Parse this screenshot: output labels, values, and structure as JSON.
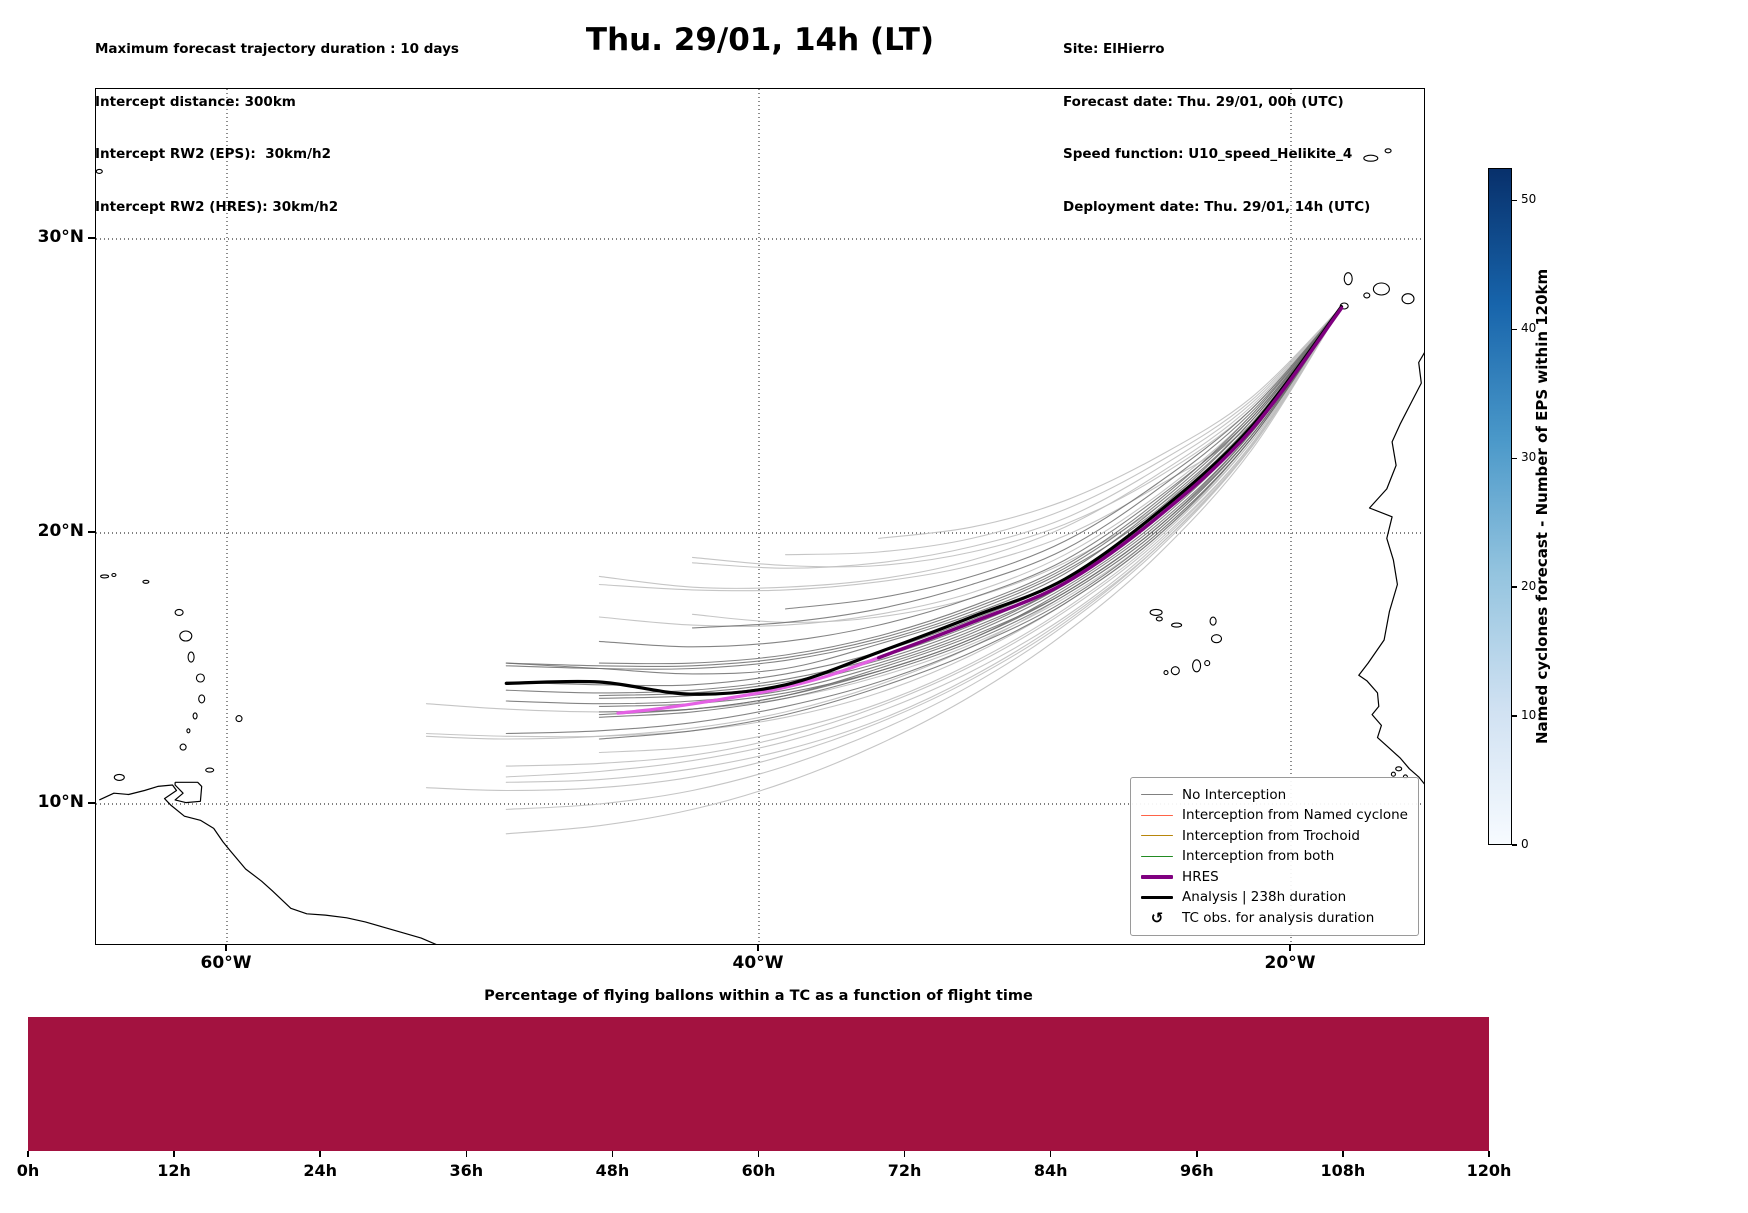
{
  "header": {
    "left_lines": [
      "Maximum forecast trajectory duration : 10 days",
      "Intercept distance: 300km",
      "Intercept RW2 (EPS):  30km/h2",
      "Intercept RW2 (HRES): 30km/h2"
    ],
    "title": "Thu. 29/01, 14h (LT)",
    "right_lines": [
      "Site: ElHierro",
      "Forecast date: Thu. 29/01, 00h (UTC)",
      "Speed function: U10_speed_Helikite_4",
      "Deployment date: Thu. 29/01, 14h (UTC)"
    ]
  },
  "map": {
    "x_ticks": [
      {
        "label": "60°W",
        "lon": -60
      },
      {
        "label": "40°W",
        "lon": -40
      },
      {
        "label": "20°W",
        "lon": -20
      }
    ],
    "y_ticks": [
      {
        "label": "30°N",
        "lat": 30
      },
      {
        "label": "20°N",
        "lat": 20
      },
      {
        "label": "10°N",
        "lat": 10
      }
    ],
    "legend": [
      {
        "label": "No Interception",
        "color": "#808080",
        "lw": 1.3
      },
      {
        "label": "Interception from Named cyclone",
        "color": "#ff6347",
        "lw": 1.3
      },
      {
        "label": "Interception from Trochoid",
        "color": "#b8860b",
        "lw": 1.3
      },
      {
        "label": "Interception from both",
        "color": "#228b22",
        "lw": 1.3
      },
      {
        "label": "HRES",
        "color": "#800080",
        "lw": 3.5
      },
      {
        "label": "Analysis | 238h duration",
        "color": "#000000",
        "lw": 3
      },
      {
        "label": "TC obs. for analysis duration",
        "marker": "↺",
        "color": "#000000"
      }
    ],
    "coastlines": {
      "africa": [
        [
          -14.75,
          26.5
        ],
        [
          -15.2,
          25.8
        ],
        [
          -15.1,
          25.1
        ],
        [
          -15.5,
          24.4
        ],
        [
          -15.9,
          23.7
        ],
        [
          -16.2,
          23.1
        ],
        [
          -16.05,
          22.3
        ],
        [
          -16.4,
          21.5
        ],
        [
          -17.05,
          20.85
        ],
        [
          -16.2,
          20.55
        ],
        [
          -16.4,
          19.8
        ],
        [
          -16.15,
          19.0
        ],
        [
          -16.0,
          18.1
        ],
        [
          -16.3,
          17.1
        ],
        [
          -16.5,
          16.05
        ],
        [
          -17.1,
          15.2
        ],
        [
          -17.45,
          14.75
        ],
        [
          -17.15,
          14.55
        ],
        [
          -16.75,
          14.1
        ],
        [
          -16.7,
          13.6
        ],
        [
          -16.95,
          13.3
        ],
        [
          -16.6,
          12.9
        ],
        [
          -16.75,
          12.45
        ],
        [
          -16.35,
          12.1
        ],
        [
          -15.9,
          11.7
        ],
        [
          -15.55,
          11.3
        ],
        [
          -15.2,
          11.0
        ],
        [
          -14.95,
          10.7
        ],
        [
          -14.75,
          10.45
        ]
      ],
      "south_america": [
        [
          -64.8,
          10.15
        ],
        [
          -64.25,
          10.4
        ],
        [
          -63.7,
          10.35
        ],
        [
          -63.1,
          10.5
        ],
        [
          -62.6,
          10.65
        ],
        [
          -62.05,
          10.7
        ],
        [
          -61.9,
          10.5
        ],
        [
          -62.35,
          10.2
        ],
        [
          -62.1,
          9.95
        ],
        [
          -61.6,
          9.55
        ],
        [
          -61.0,
          9.4
        ],
        [
          -60.5,
          9.1
        ],
        [
          -60.15,
          8.6
        ],
        [
          -59.9,
          8.3
        ],
        [
          -59.3,
          7.6
        ],
        [
          -58.7,
          7.15
        ],
        [
          -58.3,
          6.8
        ],
        [
          -57.6,
          6.15
        ],
        [
          -57.0,
          5.95
        ],
        [
          -56.3,
          5.9
        ],
        [
          -55.5,
          5.8
        ],
        [
          -54.8,
          5.65
        ],
        [
          -54.1,
          5.45
        ],
        [
          -53.4,
          5.25
        ],
        [
          -52.7,
          5.05
        ],
        [
          -52.1,
          4.8
        ],
        [
          -51.9,
          4.7
        ]
      ],
      "trinidad": [
        [
          -61.95,
          10.8
        ],
        [
          -61.1,
          10.8
        ],
        [
          -60.95,
          10.65
        ],
        [
          -61.0,
          10.1
        ],
        [
          -61.55,
          10.05
        ],
        [
          -61.95,
          10.15
        ],
        [
          -61.65,
          10.4
        ],
        [
          -61.95,
          10.7
        ],
        [
          -61.95,
          10.8
        ]
      ]
    },
    "islands": [
      [
        -17.0,
        32.75,
        7,
        3
      ],
      [
        -16.35,
        33.0,
        3,
        2
      ],
      [
        -17.85,
        28.65,
        4,
        6
      ],
      [
        -16.6,
        28.3,
        8,
        6
      ],
      [
        -17.15,
        28.08,
        3,
        2.5
      ],
      [
        -18.0,
        27.72,
        4,
        3
      ],
      [
        -15.6,
        27.97,
        6,
        5
      ],
      [
        -25.07,
        17.07,
        6,
        3
      ],
      [
        -24.95,
        16.83,
        3,
        2
      ],
      [
        -24.3,
        16.6,
        5,
        2
      ],
      [
        -22.93,
        16.75,
        3,
        4
      ],
      [
        -22.8,
        16.1,
        5,
        4
      ],
      [
        -23.15,
        15.2,
        2.5,
        2.5
      ],
      [
        -23.55,
        15.1,
        4,
        6
      ],
      [
        -24.35,
        14.92,
        4,
        4
      ],
      [
        -24.7,
        14.85,
        2,
        2
      ],
      [
        -63.05,
        18.2,
        3,
        1.5
      ],
      [
        -61.8,
        17.07,
        4,
        3
      ],
      [
        -61.55,
        16.2,
        6,
        5
      ],
      [
        -61.35,
        15.42,
        3,
        5
      ],
      [
        -61.0,
        14.65,
        4,
        4
      ],
      [
        -60.95,
        13.88,
        3,
        4
      ],
      [
        -61.2,
        13.25,
        2,
        3
      ],
      [
        -61.45,
        12.7,
        1.5,
        2
      ],
      [
        -61.65,
        12.1,
        3,
        3
      ],
      [
        -59.55,
        13.15,
        3,
        3
      ],
      [
        -60.65,
        11.25,
        4,
        2
      ],
      [
        -64.05,
        10.98,
        5,
        3
      ],
      [
        -64.6,
        18.4,
        4,
        1.5
      ],
      [
        -64.25,
        18.45,
        2,
        1.5
      ],
      [
        -64.8,
        32.3,
        3,
        2
      ],
      [
        -15.95,
        11.3,
        3,
        2
      ],
      [
        -16.15,
        11.1,
        2,
        2
      ],
      [
        -15.7,
        11.0,
        2,
        2
      ]
    ]
  },
  "colorbar": {
    "label": "Named cyclones forecast - Number of EPS within 120km",
    "ticks": [
      0,
      10,
      20,
      30,
      40,
      50
    ],
    "vmax": 52.5,
    "gradient": [
      "#f7fbff",
      "#d0e1f2",
      "#94c4df",
      "#4a98c9",
      "#1764ab",
      "#08306b"
    ]
  },
  "bottom_chart": {
    "title": "Percentage of flying ballons within a TC as a function of flight time",
    "bar_color": "#A31240",
    "x_tick_labels": [
      "0h",
      "12h",
      "24h",
      "36h",
      "48h",
      "60h",
      "72h",
      "84h",
      "96h",
      "108h",
      "120h"
    ],
    "x_range_hours": [
      0,
      120
    ],
    "value_percent": 100
  },
  "chart_data": [
    {
      "type": "line",
      "title": "Thu. 29/01, 14h (LT)",
      "description": "Ensemble balloon forecast trajectories deployed from El Hierro across the Atlantic; all members show no interception (gray).",
      "x_axis": {
        "tick_labels": [
          "60°W",
          "40°W",
          "20°W"
        ],
        "range_lon": [
          -64.8,
          -14.8
        ]
      },
      "y_axis": {
        "tick_labels": [
          "10°N",
          "20°N",
          "30°N"
        ],
        "range_lat": [
          4.8,
          35.1
        ]
      },
      "grid": "dotted",
      "legend_position": "lower right",
      "shared_lons": [
        -18.1,
        -21.5,
        -25.0,
        -28.5,
        -32.0,
        -35.5,
        -39.0,
        -42.5,
        -46.0,
        -49.5,
        -52.5
      ],
      "series": {
        "analysis": {
          "name": "Analysis | 238h duration",
          "color": "#000000",
          "width": 3.2,
          "lats": [
            27.7,
            23.6,
            20.7,
            18.3,
            16.9,
            15.6,
            14.4,
            14.05,
            14.5,
            14.45
          ]
        },
        "hres": {
          "name": "HRES",
          "color": "#800080",
          "width": 3.5,
          "lons": [
            -18.1,
            -21.5,
            -25.0,
            -28.5,
            -32.0,
            -35.5
          ],
          "lats": [
            27.65,
            23.5,
            20.55,
            18.15,
            16.7,
            15.4
          ]
        },
        "hres_tail": {
          "name": "HRES (violet segment)",
          "color": "#e461e4",
          "width": 3.2,
          "lons": [
            -35.5,
            -37.5,
            -39.5,
            -41.5,
            -43.5,
            -45.3
          ],
          "lats": [
            15.4,
            14.7,
            14.2,
            13.85,
            13.55,
            13.35
          ]
        },
        "members_dark": {
          "name": "No Interception (EPS members, near-mean)",
          "color": "#6e6e6e",
          "width": 1.1,
          "opacity": 0.85,
          "lats_list": [
            [
              27.7,
              23.8,
              20.9,
              18.5,
              17.0,
              15.9,
              15.0,
              14.8,
              15.0,
              15.2
            ],
            [
              27.7,
              23.4,
              20.2,
              17.8,
              16.2,
              15.0,
              14.0,
              13.5,
              13.3
            ],
            [
              27.7,
              23.9,
              21.2,
              19.0,
              17.6,
              16.6,
              16.0,
              15.8,
              16.0
            ],
            [
              27.7,
              23.2,
              20.0,
              17.5,
              15.8,
              14.5,
              13.6,
              13.0,
              12.7,
              12.6
            ],
            [
              27.7,
              23.6,
              20.5,
              18.1,
              16.5,
              15.3,
              14.5,
              14.1,
              14.0
            ],
            [
              27.7,
              24.1,
              21.5,
              19.4,
              18.1,
              17.2,
              16.7,
              16.5
            ],
            [
              27.7,
              23.5,
              20.4,
              18.0,
              16.3,
              15.1,
              14.2,
              13.8,
              13.7,
              13.8
            ],
            [
              27.7,
              23.3,
              20.1,
              17.7,
              16.0,
              14.8,
              13.9,
              13.4,
              13.2
            ],
            [
              27.7,
              23.7,
              20.7,
              18.3,
              16.8,
              15.6,
              14.8,
              14.4,
              14.4,
              14.5
            ],
            [
              27.7,
              24.0,
              21.1,
              18.8,
              17.3,
              16.2,
              15.5,
              15.2,
              15.2
            ],
            [
              27.7,
              23.4,
              20.3,
              17.9,
              16.1,
              14.9,
              14.0,
              13.5,
              13.4
            ],
            [
              27.7,
              23.8,
              20.8,
              18.6,
              17.1,
              16.0,
              15.3,
              15.0,
              15.0,
              15.1
            ],
            [
              27.7,
              23.2,
              19.9,
              17.4,
              15.6,
              14.3,
              13.3,
              12.7,
              12.4
            ],
            [
              27.7,
              23.6,
              20.6,
              18.2,
              16.6,
              15.4,
              14.6,
              14.2,
              14.1,
              14.2
            ],
            [
              27.7,
              24.2,
              21.7,
              19.7,
              18.4,
              17.6,
              17.2
            ],
            [
              27.7,
              23.5,
              20.5,
              18.1,
              16.4,
              15.2,
              14.4,
              14.0,
              13.9
            ],
            [
              27.7,
              23.9,
              21.0,
              18.7,
              17.2,
              16.1,
              15.4,
              15.1,
              15.1,
              15.2
            ],
            [
              27.7,
              23.3,
              20.2,
              17.8,
              16.1,
              14.9,
              14.1,
              13.7,
              13.6
            ]
          ]
        },
        "members_light": {
          "name": "No Interception (EPS members, outliers)",
          "color": "#bfbfbf",
          "width": 1.1,
          "opacity": 0.9,
          "lats_list": [
            [
              27.7,
              24.3,
              22.0,
              20.2,
              19.0,
              18.3,
              18.0,
              18.0,
              18.4
            ],
            [
              27.7,
              23.0,
              19.6,
              16.9,
              14.9,
              13.4,
              12.3,
              11.6,
              11.2,
              11.0
            ],
            [
              27.7,
              24.5,
              22.4,
              20.8,
              19.8,
              19.3,
              19.2
            ],
            [
              27.7,
              22.9,
              19.4,
              16.6,
              14.4,
              12.7,
              11.4,
              10.5,
              10.0,
              9.8
            ],
            [
              27.7,
              23.1,
              19.8,
              17.2,
              15.2,
              13.7,
              12.7,
              12.1,
              11.9
            ],
            [
              27.7,
              24.4,
              22.2,
              20.5,
              19.5,
              18.9,
              18.7,
              18.9
            ],
            [
              27.7,
              22.8,
              19.2,
              16.3,
              14.0,
              12.2,
              10.8,
              9.8,
              9.2,
              8.9
            ],
            [
              27.7,
              23.2,
              20.0,
              17.6,
              15.9,
              14.7,
              13.9,
              13.5,
              13.4,
              13.5,
              13.7
            ],
            [
              27.7,
              24.0,
              21.3,
              19.2,
              17.8,
              17.0,
              16.6,
              16.6,
              16.9
            ],
            [
              27.7,
              23.0,
              19.7,
              17.1,
              15.1,
              13.6,
              12.5,
              11.8,
              11.5,
              11.4
            ],
            [
              27.7,
              24.6,
              22.6,
              21.1,
              20.2,
              19.8
            ],
            [
              27.7,
              22.9,
              19.5,
              16.8,
              14.7,
              13.1,
              12.0,
              11.3,
              10.9,
              10.8
            ],
            [
              27.7,
              23.6,
              20.9,
              18.9,
              17.6,
              16.9,
              16.7,
              17.0
            ],
            [
              27.7,
              23.1,
              19.9,
              17.4,
              15.5,
              14.1,
              13.2,
              12.7,
              12.5,
              12.5,
              12.6
            ],
            [
              27.7,
              24.2,
              21.9,
              20.3,
              19.3,
              18.8,
              18.8,
              19.1
            ],
            [
              27.7,
              23.3,
              20.1,
              17.7,
              15.8,
              14.4,
              13.4,
              12.8,
              12.5,
              12.4,
              12.5
            ],
            [
              27.7,
              23.7,
              21.6,
              19.9,
              18.8,
              18.2,
              17.9,
              17.9,
              18.1
            ],
            [
              27.7,
              22.95,
              19.5,
              16.7,
              14.6,
              13.0,
              11.8,
              11.0,
              10.6,
              10.5,
              10.6
            ]
          ]
        }
      }
    },
    {
      "type": "bar",
      "title": "Percentage of flying ballons within a TC as a function of flight time",
      "x_tick_labels": [
        "0h",
        "12h",
        "24h",
        "36h",
        "48h",
        "60h",
        "72h",
        "84h",
        "96h",
        "108h",
        "120h"
      ],
      "x_hours": [
        0,
        120
      ],
      "values_percent": [
        100
      ],
      "bar_color": "#A31240"
    }
  ]
}
